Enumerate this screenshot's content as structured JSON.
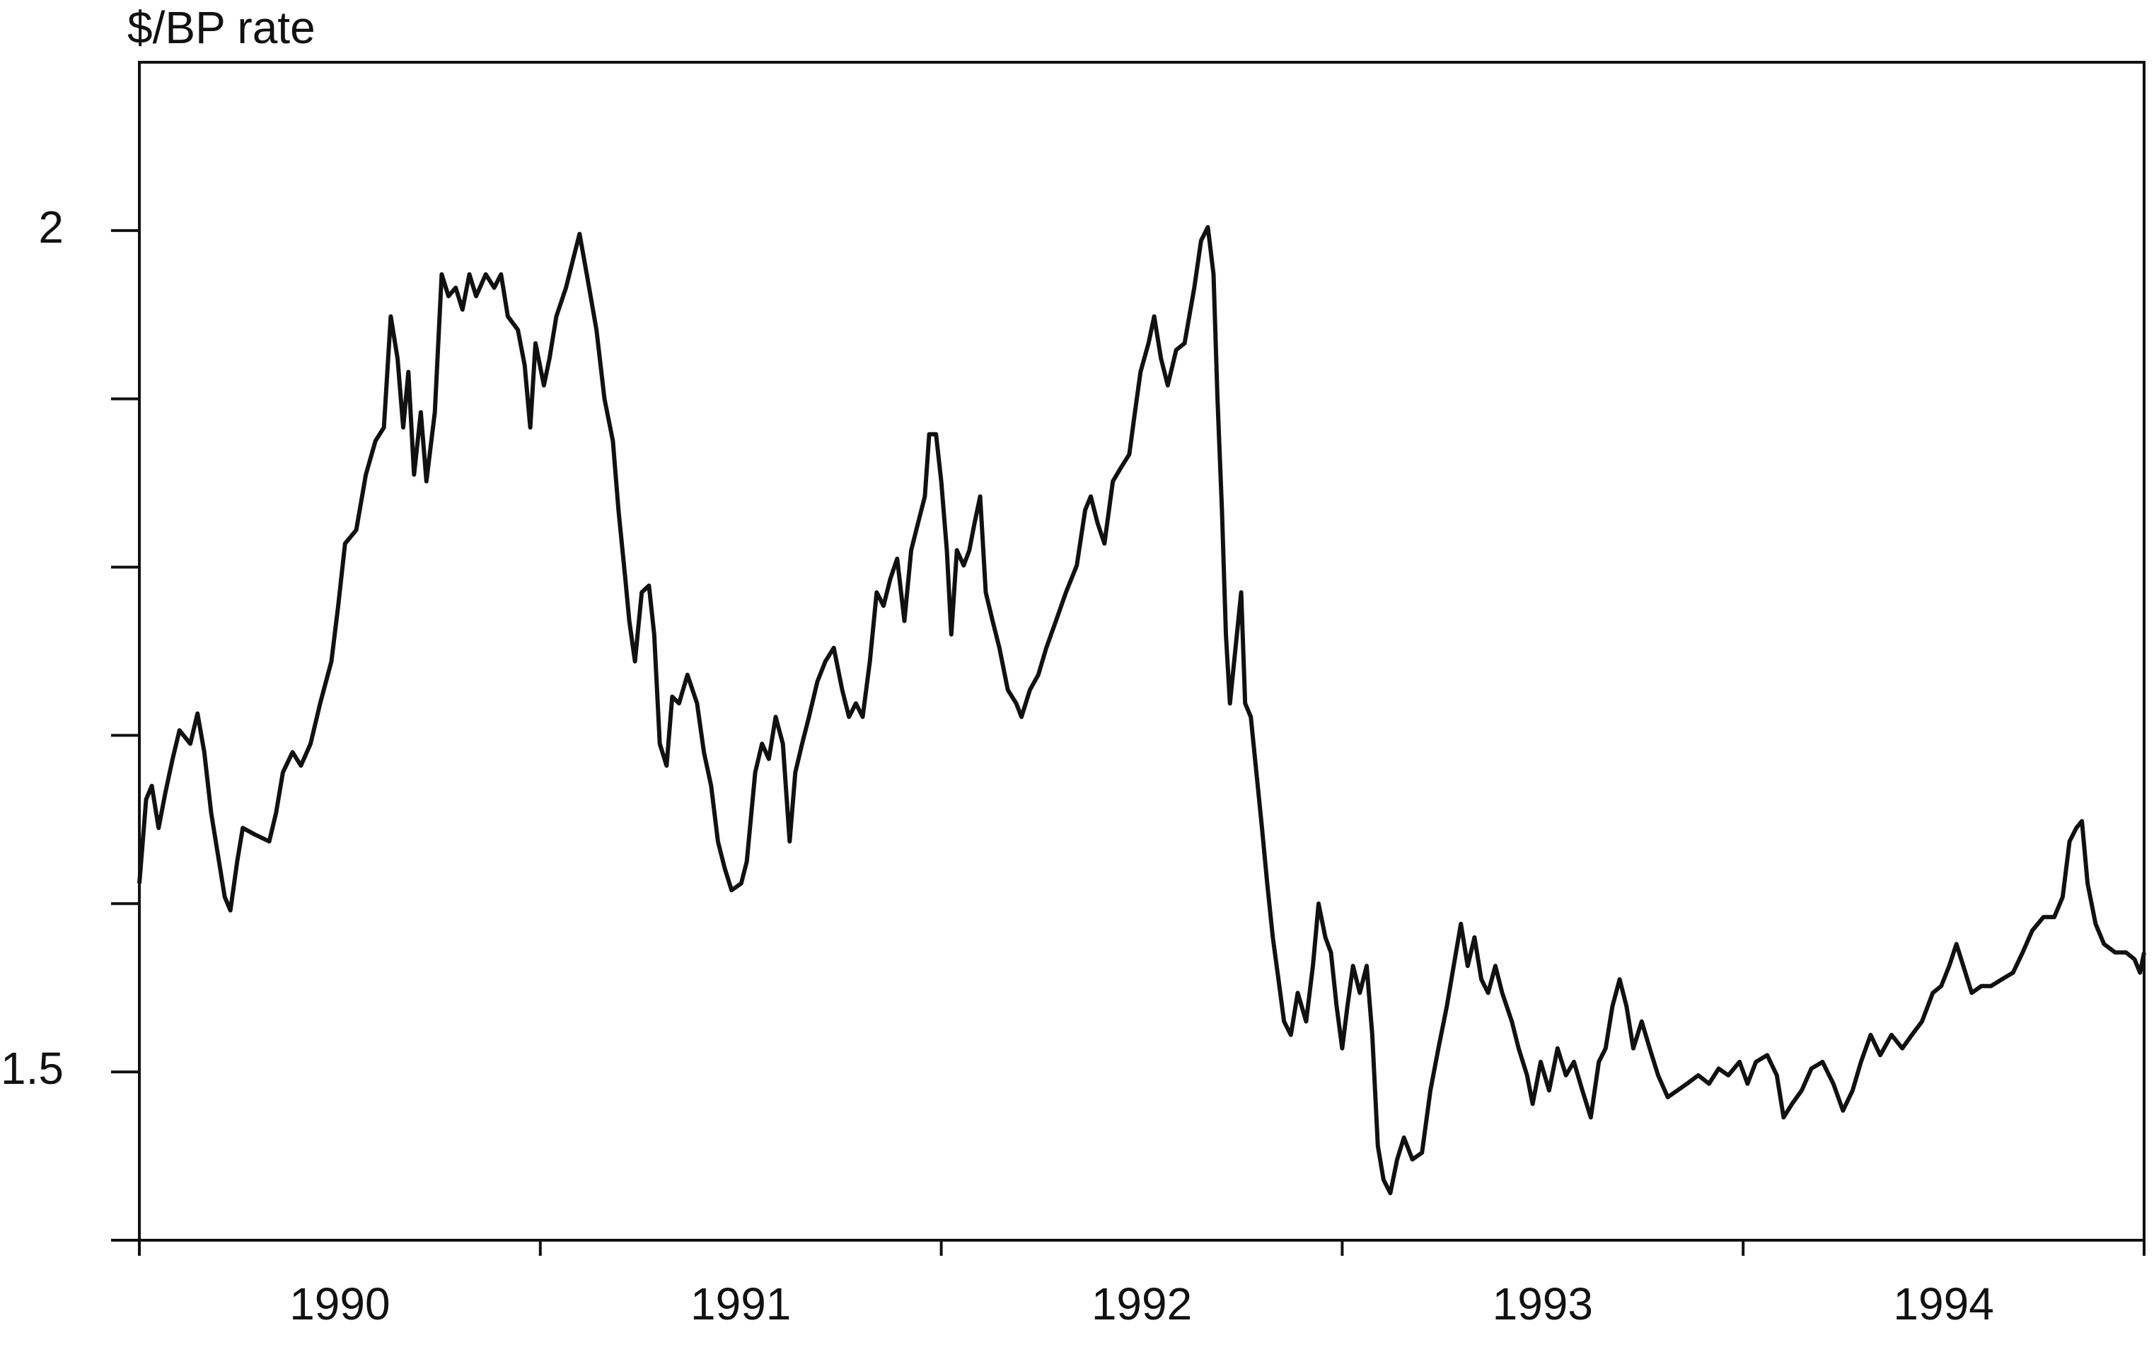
{
  "chart_data": {
    "type": "line",
    "y_label": "$/BP rate",
    "color": "#111111",
    "xlim": [
      1990,
      1995
    ],
    "ylim": [
      1.4,
      2.1
    ],
    "yticks": [
      1.5,
      2
    ],
    "yminor_ticks": [
      1.4,
      1.6,
      1.7,
      1.8,
      1.9
    ],
    "xticks": [
      {
        "value": 1990.5,
        "label": "1990"
      },
      {
        "value": 1991.5,
        "label": "1991"
      },
      {
        "value": 1992.5,
        "label": "1992"
      },
      {
        "value": 1993.5,
        "label": "1993"
      },
      {
        "value": 1994.5,
        "label": "1994"
      }
    ],
    "xminor_ticks": [
      1990,
      1991,
      1992,
      1993,
      1994,
      1995
    ],
    "x": [
      1990.0,
      1990.017,
      1990.031,
      1990.048,
      1990.065,
      1990.083,
      1990.1,
      1990.127,
      1990.145,
      1990.162,
      1990.179,
      1990.196,
      1990.213,
      1990.227,
      1990.244,
      1990.258,
      1990.289,
      1990.324,
      1990.341,
      1990.358,
      1990.382,
      1990.403,
      1990.427,
      1990.451,
      1990.479,
      1990.496,
      1990.513,
      1990.541,
      1990.565,
      1990.589,
      1990.61,
      1990.627,
      1990.644,
      1990.658,
      1990.671,
      1990.685,
      1990.702,
      1990.716,
      1990.737,
      1990.754,
      1990.771,
      1990.789,
      1990.806,
      1990.823,
      1990.84,
      1990.864,
      1990.885,
      1990.902,
      1990.919,
      1990.944,
      1990.961,
      1990.975,
      1990.988,
      1991.009,
      1991.023,
      1991.04,
      1991.064,
      1991.085,
      1991.098,
      1991.116,
      1991.14,
      1991.16,
      1991.181,
      1991.195,
      1991.212,
      1991.222,
      1991.236,
      1991.253,
      1991.271,
      1991.284,
      1991.298,
      1991.315,
      1991.329,
      1991.346,
      1991.367,
      1991.391,
      1991.408,
      1991.426,
      1991.443,
      1991.46,
      1991.477,
      1991.501,
      1991.515,
      1991.536,
      1991.553,
      1991.57,
      1991.587,
      1991.605,
      1991.622,
      1991.636,
      1991.653,
      1991.67,
      1991.691,
      1991.711,
      1991.732,
      1991.753,
      1991.77,
      1991.787,
      1991.804,
      1991.822,
      1991.839,
      1991.856,
      1991.873,
      1991.89,
      1991.908,
      1991.925,
      1991.942,
      1991.959,
      1991.97,
      1991.987,
      1992.0,
      1992.014,
      1992.025,
      1992.039,
      1992.056,
      1992.07,
      1992.083,
      1992.097,
      1992.111,
      1992.128,
      1992.145,
      1992.166,
      1992.187,
      1992.2,
      1992.221,
      1992.242,
      1992.262,
      1992.286,
      1992.311,
      1992.338,
      1992.359,
      1992.373,
      1992.39,
      1992.407,
      1992.428,
      1992.448,
      1992.469,
      1992.483,
      1992.497,
      1992.517,
      1992.531,
      1992.548,
      1992.565,
      1992.586,
      1992.607,
      1992.631,
      1992.648,
      1992.665,
      1992.679,
      1992.689,
      1992.7,
      1992.71,
      1992.72,
      1992.734,
      1992.748,
      1992.758,
      1992.772,
      1992.786,
      1992.8,
      1992.813,
      1992.827,
      1992.841,
      1992.855,
      1992.872,
      1992.889,
      1992.91,
      1992.927,
      1992.941,
      1992.958,
      1992.972,
      1992.986,
      1993.0,
      1993.013,
      1993.027,
      1993.044,
      1993.061,
      1993.075,
      1993.089,
      1993.103,
      1993.12,
      1993.137,
      1993.154,
      1993.175,
      1993.199,
      1993.22,
      1993.24,
      1993.261,
      1993.278,
      1993.296,
      1993.313,
      1993.33,
      1993.347,
      1993.364,
      1993.382,
      1993.399,
      1993.423,
      1993.44,
      1993.461,
      1993.475,
      1993.495,
      1993.516,
      1993.537,
      1993.558,
      1993.578,
      1993.599,
      1993.62,
      1993.64,
      1993.657,
      1993.674,
      1993.692,
      1993.709,
      1993.726,
      1993.747,
      1993.767,
      1993.788,
      1993.812,
      1993.836,
      1993.86,
      1993.888,
      1993.915,
      1993.939,
      1993.963,
      1993.991,
      1994.011,
      1994.032,
      1994.06,
      1994.084,
      1994.101,
      1994.122,
      1994.146,
      1994.17,
      1994.198,
      1994.225,
      1994.249,
      1994.273,
      1994.294,
      1994.318,
      1994.342,
      1994.37,
      1994.397,
      1994.421,
      1994.446,
      1994.473,
      1994.494,
      1994.514,
      1994.532,
      1994.549,
      1994.57,
      1994.594,
      1994.618,
      1994.645,
      1994.673,
      1994.697,
      1994.721,
      1994.749,
      1994.776,
      1994.797,
      1994.814,
      1994.831,
      1994.845,
      1994.859,
      1994.879,
      1994.9,
      1994.928,
      1994.955,
      1994.976,
      1994.99,
      1995.0
    ],
    "values": [
      1.612,
      1.662,
      1.67,
      1.645,
      1.666,
      1.686,
      1.703,
      1.695,
      1.713,
      1.69,
      1.654,
      1.629,
      1.604,
      1.596,
      1.625,
      1.645,
      1.641,
      1.637,
      1.654,
      1.678,
      1.69,
      1.682,
      1.695,
      1.719,
      1.744,
      1.777,
      1.814,
      1.822,
      1.855,
      1.875,
      1.883,
      1.949,
      1.924,
      1.883,
      1.916,
      1.855,
      1.892,
      1.851,
      1.892,
      1.974,
      1.961,
      1.966,
      1.953,
      1.974,
      1.961,
      1.974,
      1.966,
      1.974,
      1.949,
      1.941,
      1.92,
      1.883,
      1.933,
      1.908,
      1.924,
      1.949,
      1.966,
      1.986,
      1.998,
      1.974,
      1.941,
      1.9,
      1.875,
      1.834,
      1.793,
      1.768,
      1.744,
      1.785,
      1.789,
      1.76,
      1.695,
      1.682,
      1.723,
      1.719,
      1.736,
      1.719,
      1.69,
      1.67,
      1.637,
      1.621,
      1.608,
      1.612,
      1.625,
      1.678,
      1.695,
      1.686,
      1.711,
      1.695,
      1.637,
      1.678,
      1.695,
      1.711,
      1.732,
      1.744,
      1.752,
      1.727,
      1.711,
      1.719,
      1.711,
      1.744,
      1.785,
      1.777,
      1.793,
      1.805,
      1.768,
      1.81,
      1.826,
      1.842,
      1.879,
      1.879,
      1.851,
      1.81,
      1.76,
      1.81,
      1.801,
      1.81,
      1.826,
      1.842,
      1.785,
      1.768,
      1.752,
      1.727,
      1.719,
      1.711,
      1.727,
      1.736,
      1.752,
      1.768,
      1.785,
      1.801,
      1.834,
      1.842,
      1.826,
      1.814,
      1.851,
      1.859,
      1.867,
      1.892,
      1.916,
      1.933,
      1.949,
      1.924,
      1.908,
      1.929,
      1.933,
      1.966,
      1.994,
      2.002,
      1.974,
      1.9,
      1.834,
      1.76,
      1.719,
      1.752,
      1.785,
      1.719,
      1.711,
      1.678,
      1.645,
      1.612,
      1.58,
      1.555,
      1.53,
      1.522,
      1.547,
      1.53,
      1.563,
      1.6,
      1.58,
      1.571,
      1.539,
      1.514,
      1.539,
      1.563,
      1.547,
      1.563,
      1.522,
      1.456,
      1.436,
      1.428,
      1.448,
      1.461,
      1.448,
      1.452,
      1.489,
      1.514,
      1.539,
      1.563,
      1.588,
      1.563,
      1.58,
      1.555,
      1.547,
      1.563,
      1.547,
      1.53,
      1.514,
      1.498,
      1.481,
      1.506,
      1.489,
      1.514,
      1.498,
      1.506,
      1.489,
      1.473,
      1.506,
      1.514,
      1.539,
      1.555,
      1.539,
      1.514,
      1.53,
      1.514,
      1.498,
      1.485,
      1.489,
      1.493,
      1.498,
      1.493,
      1.502,
      1.498,
      1.506,
      1.493,
      1.506,
      1.51,
      1.498,
      1.473,
      1.481,
      1.489,
      1.502,
      1.506,
      1.493,
      1.477,
      1.489,
      1.506,
      1.522,
      1.51,
      1.522,
      1.514,
      1.522,
      1.53,
      1.547,
      1.551,
      1.563,
      1.576,
      1.563,
      1.547,
      1.551,
      1.551,
      1.555,
      1.559,
      1.571,
      1.584,
      1.592,
      1.592,
      1.604,
      1.637,
      1.645,
      1.649,
      1.612,
      1.588,
      1.576,
      1.571,
      1.571,
      1.567,
      1.559,
      1.571
    ]
  }
}
